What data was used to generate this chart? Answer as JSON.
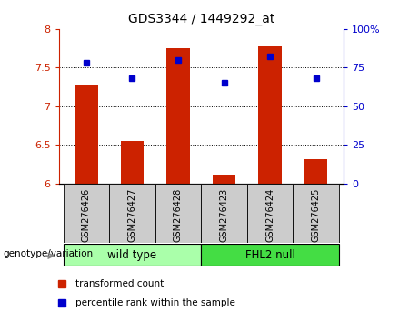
{
  "title": "GDS3344 / 1449292_at",
  "samples": [
    "GSM276426",
    "GSM276427",
    "GSM276428",
    "GSM276423",
    "GSM276424",
    "GSM276425"
  ],
  "red_bars": [
    7.28,
    6.55,
    7.75,
    6.12,
    7.77,
    6.32
  ],
  "blue_squares": [
    78,
    68,
    80,
    65,
    82,
    68
  ],
  "ylim_left": [
    6,
    8
  ],
  "ylim_right": [
    0,
    100
  ],
  "yticks_left": [
    6.0,
    6.5,
    7.0,
    7.5,
    8.0
  ],
  "yticks_right": [
    0,
    25,
    50,
    75,
    100
  ],
  "ytick_labels_left": [
    "6",
    "6.5",
    "7",
    "7.5",
    "8"
  ],
  "ytick_labels_right": [
    "0",
    "25",
    "50",
    "75",
    "100%"
  ],
  "bar_color": "#cc2200",
  "square_color": "#0000cc",
  "wild_type_color": "#aaffaa",
  "fhl2_null_color": "#44dd44",
  "label_bg_color": "#cccccc",
  "group_labels": [
    "wild type",
    "FHL2 null"
  ],
  "legend_labels": [
    "transformed count",
    "percentile rank within the sample"
  ],
  "legend_colors": [
    "#cc2200",
    "#0000cc"
  ],
  "genotype_label": "genotype/variation",
  "bar_width": 0.5,
  "bar_bottom": 6.0,
  "dotted_lines": [
    6.5,
    7.0,
    7.5
  ]
}
